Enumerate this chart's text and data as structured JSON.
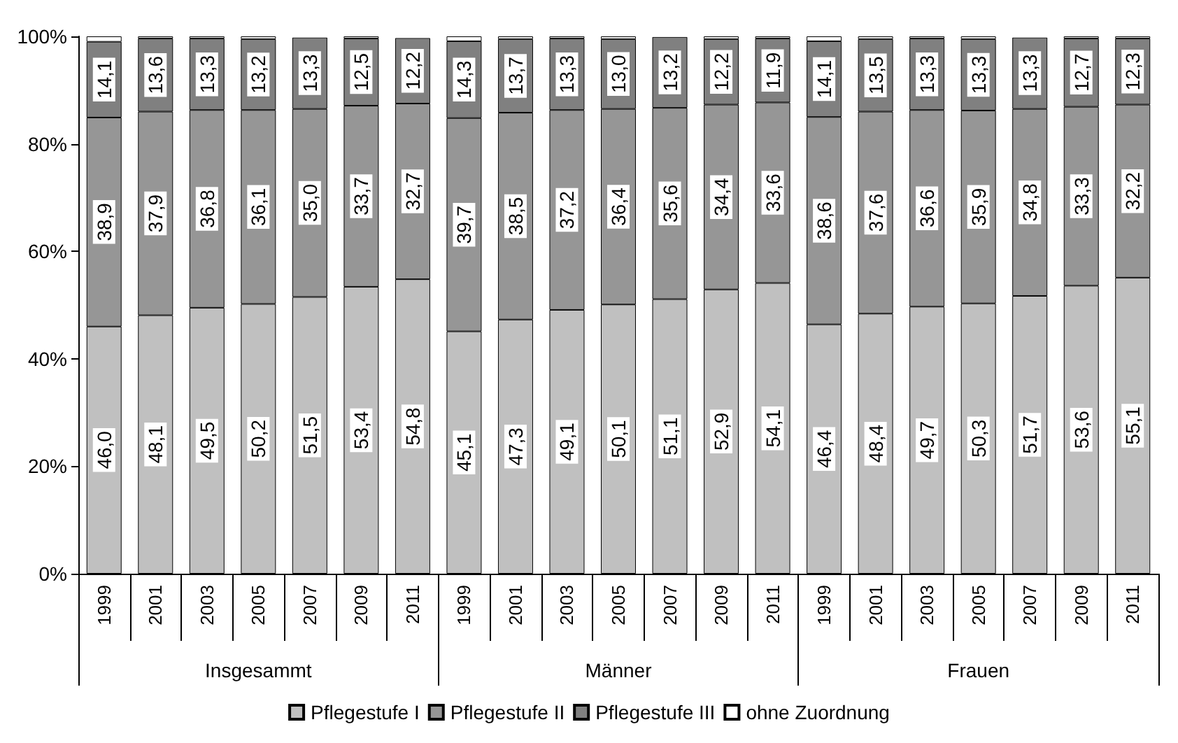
{
  "chart_data": {
    "type": "bar",
    "stacked": true,
    "categories": [
      "1999",
      "2001",
      "2003",
      "2005",
      "2007",
      "2009",
      "2011",
      "1999",
      "2001",
      "2003",
      "2005",
      "2007",
      "2009",
      "2011",
      "1999",
      "2001",
      "2003",
      "2005",
      "2007",
      "2009",
      "2011"
    ],
    "annotations": [
      "Insgesammt",
      "Männer",
      "Frauen"
    ],
    "series": [
      {
        "name": "Pflegestufe I",
        "color": "#c0c0c0",
        "values": [
          46.0,
          48.1,
          49.5,
          50.2,
          51.5,
          53.4,
          54.8,
          45.1,
          47.3,
          49.1,
          50.1,
          51.1,
          52.9,
          54.1,
          46.4,
          48.4,
          49.7,
          50.3,
          51.7,
          53.6,
          55.1
        ],
        "value_labels": [
          "46,0",
          "48,1",
          "49,5",
          "50,2",
          "51,5",
          "53,4",
          "54,8",
          "45,1",
          "47,3",
          "49,1",
          "50,1",
          "51,1",
          "52,9",
          "54,1",
          "46,4",
          "48,4",
          "49,7",
          "50,3",
          "51,7",
          "53,6",
          "55,1"
        ]
      },
      {
        "name": "Pflegestufe II",
        "color": "#969696",
        "values": [
          38.9,
          37.9,
          36.8,
          36.1,
          35.0,
          33.7,
          32.7,
          39.7,
          38.5,
          37.2,
          36.4,
          35.6,
          34.4,
          33.6,
          38.6,
          37.6,
          36.6,
          35.9,
          34.8,
          33.3,
          32.2
        ],
        "value_labels": [
          "38,9",
          "37,9",
          "36,8",
          "36,1",
          "35,0",
          "33,7",
          "32,7",
          "39,7",
          "38,5",
          "37,2",
          "36,4",
          "35,6",
          "34,4",
          "33,6",
          "38,6",
          "37,6",
          "36,6",
          "35,9",
          "34,8",
          "33,3",
          "32,2"
        ]
      },
      {
        "name": "Pflegestufe III",
        "color": "#808080",
        "values": [
          14.1,
          13.6,
          13.3,
          13.2,
          13.3,
          12.5,
          12.2,
          14.3,
          13.7,
          13.3,
          13.0,
          13.2,
          12.2,
          11.9,
          14.1,
          13.5,
          13.3,
          13.3,
          13.3,
          12.7,
          12.3
        ],
        "value_labels": [
          "14,1",
          "13,6",
          "13,3",
          "13,2",
          "13,3",
          "12,5",
          "12,2",
          "14,3",
          "13,7",
          "13,3",
          "13,0",
          "13,2",
          "12,2",
          "11,9",
          "14,1",
          "13,5",
          "13,3",
          "13,3",
          "13,3",
          "12,7",
          "12,3"
        ]
      },
      {
        "name": "ohne Zuordnung",
        "color": "#ffffff",
        "values": [
          1.0,
          0.4,
          0.4,
          0.5,
          0.2,
          0.4,
          0.3,
          0.9,
          0.5,
          0.4,
          0.5,
          0.1,
          0.5,
          0.4,
          0.9,
          0.5,
          0.4,
          0.5,
          0.2,
          0.4,
          0.4
        ]
      }
    ],
    "ylim": [
      0,
      100
    ],
    "yticks": [
      {
        "value": 0,
        "label": "0%"
      },
      {
        "value": 20,
        "label": "20%"
      },
      {
        "value": 40,
        "label": "40%"
      },
      {
        "value": 60,
        "label": "60%"
      },
      {
        "value": 80,
        "label": "80%"
      },
      {
        "value": 100,
        "label": "100%"
      }
    ],
    "legend": "bottom"
  }
}
